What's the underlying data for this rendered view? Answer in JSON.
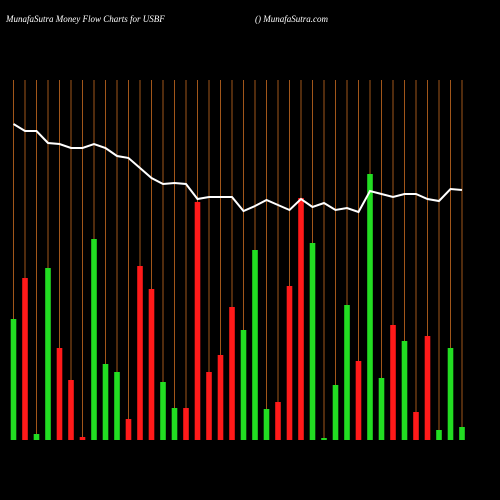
{
  "chart_data": {
    "type": "bar",
    "title": "MunafaSutra  Money Flow  Charts for USBF",
    "subtitle": "() MunafaSutra.com",
    "values": [
      121,
      162,
      6,
      172,
      92,
      60,
      3,
      201,
      76,
      68,
      21,
      174,
      151,
      58,
      32,
      32,
      238,
      68,
      85,
      133,
      110,
      190,
      31,
      38,
      154,
      242,
      197,
      2,
      55,
      135,
      79,
      266,
      62,
      115,
      99,
      28,
      104,
      10,
      92,
      13
    ],
    "colors": [
      "#22dd22",
      "#ff1a1a",
      "#22dd22",
      "#22dd22",
      "#ff1a1a",
      "#ff1a1a",
      "#ff1a1a",
      "#22dd22",
      "#22dd22",
      "#22dd22",
      "#ff1a1a",
      "#ff1a1a",
      "#ff1a1a",
      "#22dd22",
      "#22dd22",
      "#ff1a1a",
      "#ff1a1a",
      "#ff1a1a",
      "#ff1a1a",
      "#ff1a1a",
      "#22dd22",
      "#22dd22",
      "#22dd22",
      "#ff1a1a",
      "#ff1a1a",
      "#ff1a1a",
      "#22dd22",
      "#22dd22",
      "#22dd22",
      "#22dd22",
      "#ff1a1a",
      "#22dd22",
      "#22dd22",
      "#ff1a1a",
      "#22dd22",
      "#ff1a1a",
      "#ff1a1a",
      "#22dd22",
      "#22dd22",
      "#22dd22"
    ],
    "line_values": [
      316,
      309,
      309,
      297,
      296,
      292,
      292,
      296,
      292,
      284,
      282,
      272,
      262,
      256,
      257,
      256,
      241,
      243,
      243,
      243,
      229,
      234,
      240,
      235,
      230,
      241,
      233,
      237,
      230,
      232,
      228,
      249,
      246,
      243,
      246,
      246,
      241,
      239,
      251,
      250
    ],
    "line_color": "#ffffff",
    "grid_color": "#a0561a",
    "ylim": [
      0,
      360
    ]
  }
}
